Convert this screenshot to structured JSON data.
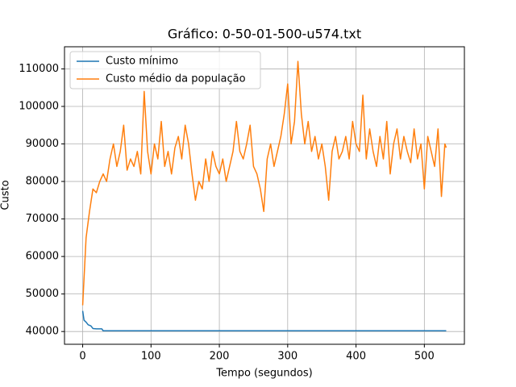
{
  "chart_data": {
    "type": "line",
    "title": "Gráfico: 0-50-01-500-u574.txt",
    "xlabel": "Tempo (segundos)",
    "ylabel": "Custo",
    "xlim": [
      -26.6,
      558.6
    ],
    "xticks": [
      0,
      100,
      200,
      300,
      400,
      500
    ],
    "ylim": [
      36600,
      115900
    ],
    "yticks": [
      40000,
      50000,
      60000,
      70000,
      80000,
      90000,
      100000,
      110000
    ],
    "grid": true,
    "legend": "upper-left",
    "series": [
      {
        "name": "Custo mínimo",
        "color": "#1f77b4",
        "x": [
          0,
          2,
          5,
          8,
          12,
          15,
          20,
          28,
          30,
          532
        ],
        "values": [
          45500,
          43000,
          42500,
          41800,
          41500,
          40800,
          40700,
          40700,
          40200,
          40200
        ]
      },
      {
        "name": "Custo médio da população",
        "color": "#ff7f0e",
        "x": [
          0,
          5,
          10,
          15,
          20,
          25,
          30,
          35,
          40,
          45,
          50,
          55,
          60,
          65,
          70,
          75,
          80,
          85,
          90,
          95,
          100,
          105,
          110,
          115,
          120,
          125,
          130,
          135,
          140,
          145,
          150,
          155,
          160,
          165,
          170,
          175,
          180,
          185,
          190,
          195,
          200,
          205,
          210,
          215,
          220,
          225,
          230,
          235,
          240,
          245,
          250,
          255,
          260,
          265,
          270,
          275,
          280,
          285,
          290,
          295,
          300,
          305,
          310,
          315,
          320,
          325,
          330,
          335,
          340,
          345,
          350,
          355,
          360,
          365,
          370,
          375,
          380,
          385,
          390,
          395,
          400,
          405,
          410,
          415,
          420,
          425,
          430,
          435,
          440,
          445,
          450,
          455,
          460,
          465,
          470,
          475,
          480,
          485,
          490,
          495,
          500,
          505,
          510,
          515,
          520,
          525,
          530,
          532
        ],
        "values": [
          47000,
          65000,
          72000,
          78000,
          77000,
          80000,
          82000,
          80000,
          86000,
          90000,
          84000,
          88000,
          95000,
          83000,
          86000,
          84000,
          88000,
          82000,
          104000,
          88000,
          82000,
          90000,
          86000,
          96000,
          84000,
          88000,
          82000,
          89000,
          92000,
          86000,
          95000,
          90000,
          82000,
          75000,
          80000,
          78000,
          86000,
          80000,
          88000,
          84000,
          82000,
          86000,
          80000,
          84000,
          88000,
          96000,
          88000,
          86000,
          90000,
          95000,
          84000,
          82000,
          78000,
          72000,
          86000,
          90000,
          84000,
          88000,
          92000,
          98000,
          106000,
          90000,
          96000,
          112000,
          98000,
          90000,
          96000,
          88000,
          92000,
          86000,
          90000,
          84000,
          75000,
          88000,
          92000,
          86000,
          88000,
          92000,
          86000,
          96000,
          90000,
          88000,
          103000,
          86000,
          94000,
          88000,
          84000,
          92000,
          86000,
          96000,
          82000,
          90000,
          94000,
          86000,
          92000,
          88000,
          85000,
          94000,
          86000,
          90000,
          78000,
          92000,
          88000,
          84000,
          94000,
          76000,
          90000,
          89000
        ]
      }
    ]
  }
}
